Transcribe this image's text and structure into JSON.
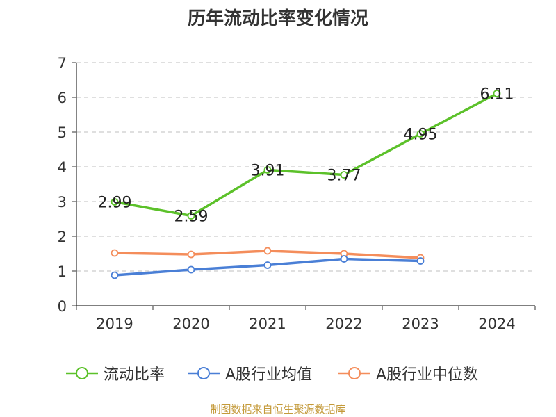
{
  "chart_data": {
    "type": "line",
    "title": "历年流动比率变化情况",
    "categories": [
      "2019",
      "2020",
      "2021",
      "2022",
      "2023",
      "2024"
    ],
    "ylim": [
      0,
      7
    ],
    "yticks": [
      "0",
      "1",
      "2",
      "3",
      "4",
      "5",
      "6",
      "7"
    ],
    "grid": true,
    "series": [
      {
        "name": "流动比率",
        "color": "#5cc12a",
        "values": [
          2.99,
          2.59,
          3.91,
          3.77,
          4.95,
          6.11
        ],
        "labels": [
          "2.99",
          "2.59",
          "3.91",
          "3.77",
          "4.95",
          "6.11"
        ]
      },
      {
        "name": "A股行业均值",
        "color": "#4a7fd6",
        "values": [
          0.88,
          1.04,
          1.17,
          1.35,
          1.29,
          null
        ]
      },
      {
        "name": "A股行业中位数",
        "color": "#f48d5b",
        "values": [
          1.52,
          1.48,
          1.58,
          1.5,
          1.38,
          null
        ]
      }
    ],
    "legend_position": "bottom",
    "source": "制图数据来自恒生聚源数据库"
  }
}
